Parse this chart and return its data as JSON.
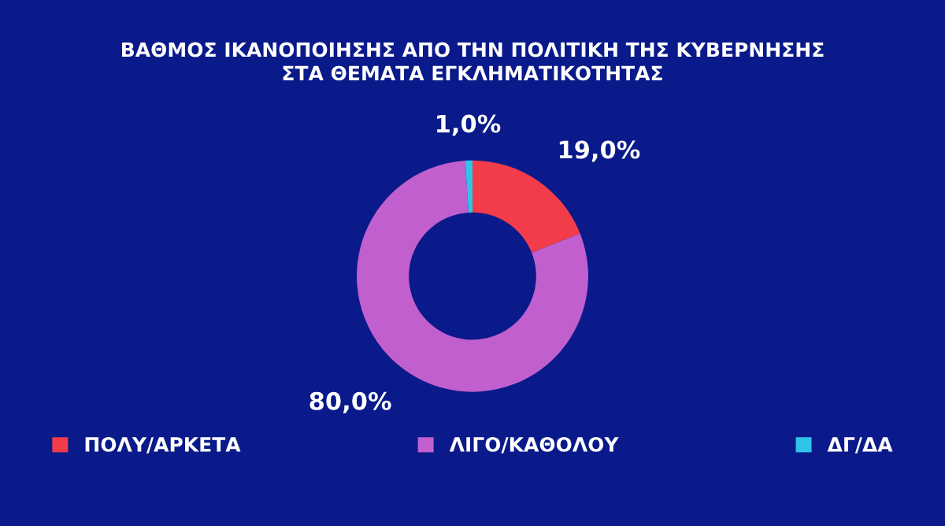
{
  "chart_data": {
    "type": "donut",
    "title": "ΒΑΘΜΟΣ ΙΚΑΝΟΠΟΙΗΣΗΣ ΑΠΟ ΤΗΝ ΠΟΛΙΤΙΚΗ ΤΗΣ ΚΥΒΕΡΝΗΣΗΣ\nΣΤΑ ΘΕΜΑΤΑ ΕΓΚΛΗΜΑΤΙΚΟΤΗΤΑΣ",
    "categories": [
      "ΠΟΛΥ/ΑΡΚΕΤΑ",
      "ΛΙΓΟ/ΚΑΘΟΛΟΥ",
      "ΔΓ/ΔΑ"
    ],
    "values": [
      19.0,
      80.0,
      1.0
    ],
    "value_labels": [
      "19,0%",
      "80,0%",
      "1,0%"
    ],
    "colors": [
      "#f23c4a",
      "#c25fce",
      "#2fc4e8"
    ],
    "legend": "bottom"
  }
}
